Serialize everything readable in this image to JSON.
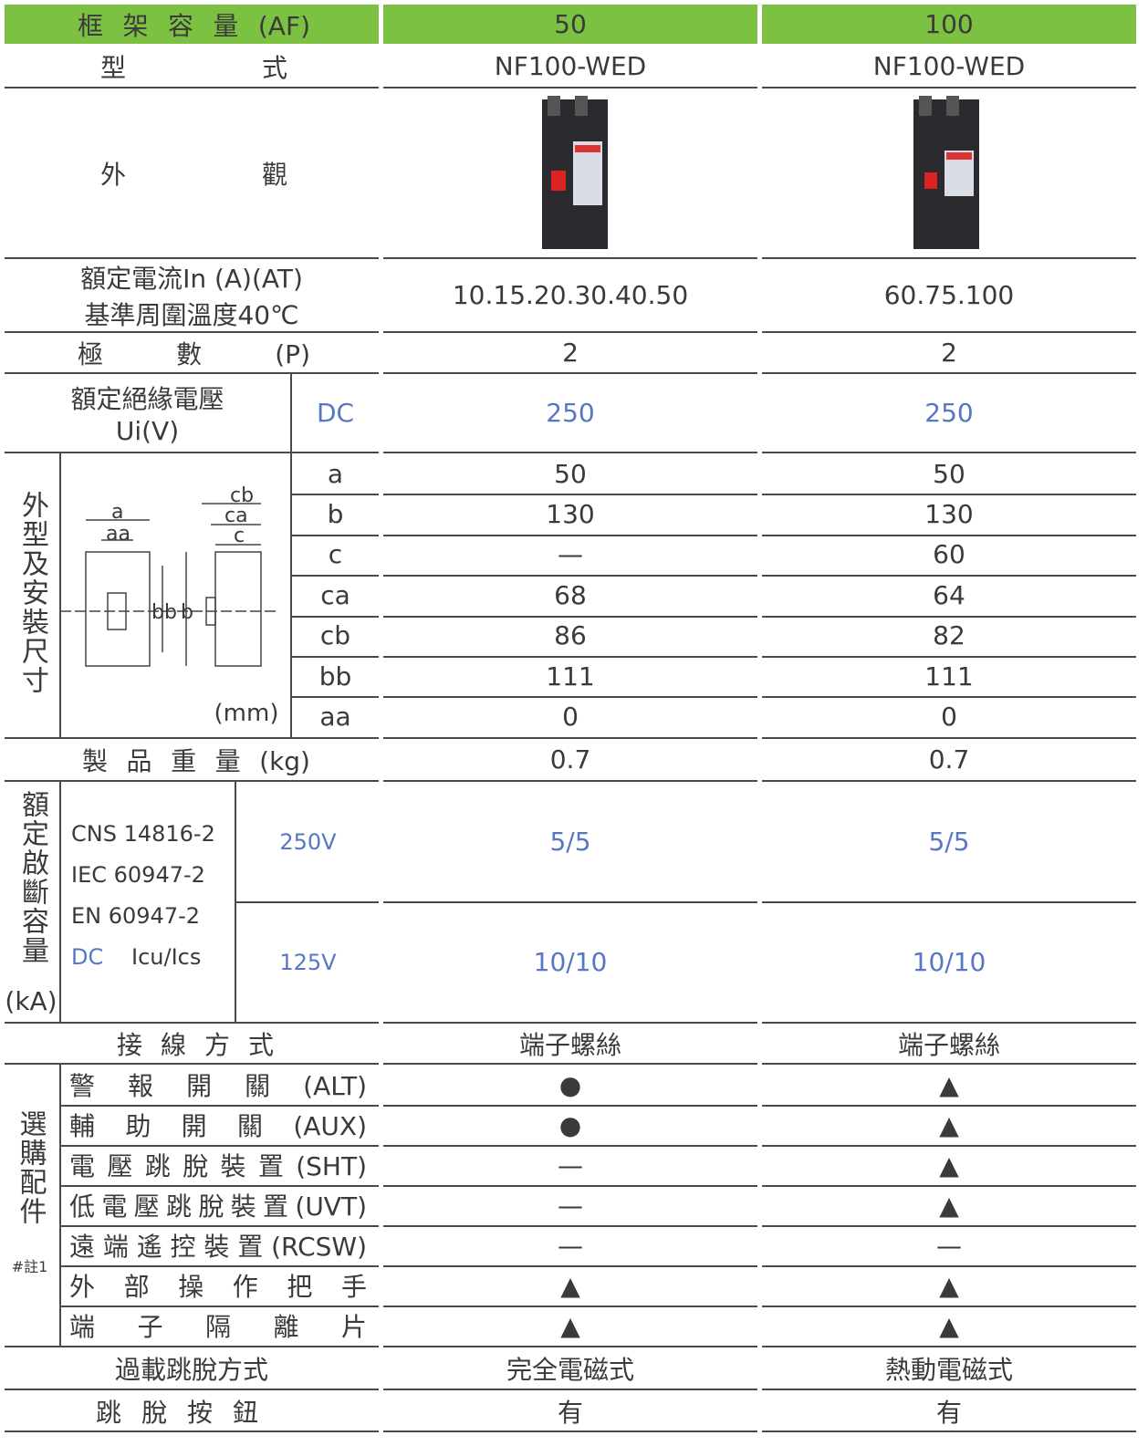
{
  "header_row": {
    "label": "框 架 容 量 (AF)",
    "values": [
      "50",
      "100"
    ]
  },
  "model_row": {
    "label": "型 式",
    "values": [
      "NF100-WED",
      "NF100-WED"
    ]
  },
  "appearance_row": {
    "label": "外 觀"
  },
  "current_row": {
    "label_lines": [
      "額定電流In (A)(AT)",
      "基準周圍溫度40℃"
    ],
    "values": [
      "10.15.20.30.40.50",
      "60.75.100"
    ]
  },
  "poles_row": {
    "label": "極 數 (P)",
    "values": [
      "2",
      "2"
    ]
  },
  "insulation_row": {
    "label_lines": [
      "額定絕緣電壓",
      "Ui(V)"
    ],
    "sub_label": "DC",
    "values": [
      "250",
      "250"
    ]
  },
  "dimensions": {
    "label": "外型及安裝尺寸",
    "unit": "(mm)",
    "diagram_labels": [
      "cb",
      "ca",
      "c",
      "a",
      "aa",
      "bb",
      "b"
    ],
    "rows": [
      {
        "name": "a",
        "values": [
          "50",
          "50"
        ]
      },
      {
        "name": "b",
        "values": [
          "130",
          "130"
        ]
      },
      {
        "name": "c",
        "values": [
          "—",
          "60"
        ]
      },
      {
        "name": "ca",
        "values": [
          "68",
          "64"
        ]
      },
      {
        "name": "cb",
        "values": [
          "86",
          "82"
        ]
      },
      {
        "name": "bb",
        "values": [
          "111",
          "111"
        ]
      },
      {
        "name": "aa",
        "values": [
          "0",
          "0"
        ]
      }
    ]
  },
  "weight_row": {
    "label": "製 品 重 量 (kg)",
    "values": [
      "0.7",
      "0.7"
    ]
  },
  "breaking_capacity": {
    "label": "額定啟斷容量",
    "unit": "(kA)",
    "standards": [
      "CNS 14816-2",
      "IEC 60947-2",
      "EN 60947-2"
    ],
    "current_type": "DC",
    "ratio_label": "Icu/Ics",
    "rows": [
      {
        "voltage": "250V",
        "values": [
          "5/5",
          "5/5"
        ]
      },
      {
        "voltage": "125V",
        "values": [
          "10/10",
          "10/10"
        ]
      }
    ]
  },
  "wiring_row": {
    "label": "接 線 方 式",
    "values": [
      "端子螺絲",
      "端子螺絲"
    ]
  },
  "accessories": {
    "label": "選購配件",
    "note": "#註1",
    "rows": [
      {
        "name": "警 報 開 關 (ALT)",
        "values": [
          "●",
          "▲"
        ]
      },
      {
        "name": "輔 助 開 關 (AUX)",
        "values": [
          "●",
          "▲"
        ]
      },
      {
        "name": "電壓跳脫裝置(SHT)",
        "values": [
          "—",
          "▲"
        ]
      },
      {
        "name": "低電壓跳脫裝置(UVT)",
        "values": [
          "—",
          "▲"
        ]
      },
      {
        "name": "遠端遙控裝置(RCSW)",
        "values": [
          "—",
          "—"
        ]
      },
      {
        "name": "外 部 操 作 把 手",
        "values": [
          "▲",
          "▲"
        ]
      },
      {
        "name": "端 子 隔 離 片",
        "values": [
          "▲",
          "▲"
        ]
      }
    ]
  },
  "trip_method_row": {
    "label": "過載跳脫方式",
    "values": [
      "完全電磁式",
      "熱動電磁式"
    ]
  },
  "trip_button_row": {
    "label": "跳 脫 按 鈕",
    "values": [
      "有",
      "有"
    ]
  }
}
